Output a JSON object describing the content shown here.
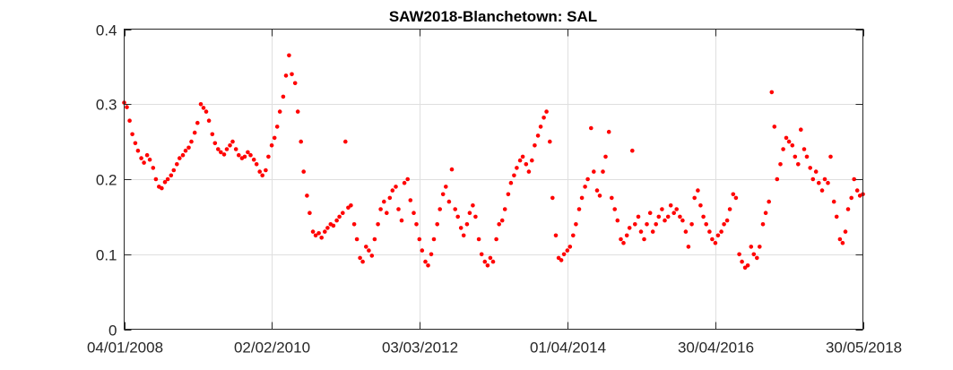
{
  "chart_data": {
    "type": "scatter",
    "title": "SAW2018-Blanchetown: SAL",
    "xlabel": "",
    "ylabel": "",
    "x_axis_type": "date",
    "xlim": [
      "2008-01-04",
      "2018-05-30"
    ],
    "ylim": [
      0,
      0.4
    ],
    "xticks": [
      {
        "date": "2008-01-04",
        "label": "04/01/2008"
      },
      {
        "date": "2010-02-02",
        "label": "02/02/2010"
      },
      {
        "date": "2012-03-03",
        "label": "03/03/2012"
      },
      {
        "date": "2014-04-01",
        "label": "01/04/2014"
      },
      {
        "date": "2016-04-30",
        "label": "30/04/2016"
      },
      {
        "date": "2018-05-30",
        "label": "30/05/2018"
      }
    ],
    "yticks": [
      {
        "value": 0,
        "label": "0"
      },
      {
        "value": 0.1,
        "label": "0.1"
      },
      {
        "value": 0.2,
        "label": "0.2"
      },
      {
        "value": 0.3,
        "label": "0.3"
      },
      {
        "value": 0.4,
        "label": "0.4"
      }
    ],
    "grid": true,
    "series": [
      {
        "name": "SAL",
        "color": "#ff0000",
        "marker": "dot",
        "points": [
          [
            "2008-01-04",
            0.302
          ],
          [
            "2008-01-18",
            0.296
          ],
          [
            "2008-02-01",
            0.278
          ],
          [
            "2008-02-15",
            0.26
          ],
          [
            "2008-03-01",
            0.248
          ],
          [
            "2008-03-15",
            0.238
          ],
          [
            "2008-04-01",
            0.228
          ],
          [
            "2008-04-15",
            0.222
          ],
          [
            "2008-05-01",
            0.232
          ],
          [
            "2008-05-15",
            0.226
          ],
          [
            "2008-06-01",
            0.215
          ],
          [
            "2008-06-15",
            0.2
          ],
          [
            "2008-07-01",
            0.19
          ],
          [
            "2008-07-15",
            0.188
          ],
          [
            "2008-08-01",
            0.196
          ],
          [
            "2008-08-15",
            0.2
          ],
          [
            "2008-09-01",
            0.205
          ],
          [
            "2008-09-15",
            0.212
          ],
          [
            "2008-10-01",
            0.22
          ],
          [
            "2008-10-15",
            0.228
          ],
          [
            "2008-11-01",
            0.232
          ],
          [
            "2008-11-15",
            0.238
          ],
          [
            "2008-12-01",
            0.242
          ],
          [
            "2008-12-15",
            0.25
          ],
          [
            "2009-01-01",
            0.262
          ],
          [
            "2009-01-15",
            0.275
          ],
          [
            "2009-02-01",
            0.3
          ],
          [
            "2009-02-15",
            0.295
          ],
          [
            "2009-03-01",
            0.29
          ],
          [
            "2009-03-15",
            0.278
          ],
          [
            "2009-04-01",
            0.26
          ],
          [
            "2009-04-15",
            0.248
          ],
          [
            "2009-05-01",
            0.24
          ],
          [
            "2009-05-15",
            0.236
          ],
          [
            "2009-06-01",
            0.233
          ],
          [
            "2009-06-15",
            0.24
          ],
          [
            "2009-07-01",
            0.245
          ],
          [
            "2009-07-15",
            0.25
          ],
          [
            "2009-08-01",
            0.24
          ],
          [
            "2009-08-15",
            0.232
          ],
          [
            "2009-09-01",
            0.228
          ],
          [
            "2009-09-15",
            0.23
          ],
          [
            "2009-10-01",
            0.236
          ],
          [
            "2009-10-15",
            0.232
          ],
          [
            "2009-11-01",
            0.226
          ],
          [
            "2009-11-15",
            0.22
          ],
          [
            "2009-12-01",
            0.21
          ],
          [
            "2009-12-15",
            0.205
          ],
          [
            "2010-01-01",
            0.212
          ],
          [
            "2010-01-15",
            0.23
          ],
          [
            "2010-02-01",
            0.245
          ],
          [
            "2010-02-15",
            0.255
          ],
          [
            "2010-03-01",
            0.27
          ],
          [
            "2010-03-15",
            0.29
          ],
          [
            "2010-04-01",
            0.31
          ],
          [
            "2010-04-15",
            0.338
          ],
          [
            "2010-05-01",
            0.365
          ],
          [
            "2010-05-15",
            0.34
          ],
          [
            "2010-06-01",
            0.328
          ],
          [
            "2010-06-15",
            0.29
          ],
          [
            "2010-07-01",
            0.25
          ],
          [
            "2010-07-15",
            0.21
          ],
          [
            "2010-08-01",
            0.178
          ],
          [
            "2010-08-15",
            0.155
          ],
          [
            "2010-09-01",
            0.13
          ],
          [
            "2010-09-15",
            0.125
          ],
          [
            "2010-10-01",
            0.128
          ],
          [
            "2010-10-15",
            0.122
          ],
          [
            "2010-11-01",
            0.13
          ],
          [
            "2010-11-15",
            0.135
          ],
          [
            "2010-12-01",
            0.14
          ],
          [
            "2010-12-15",
            0.138
          ],
          [
            "2011-01-01",
            0.145
          ],
          [
            "2011-01-15",
            0.15
          ],
          [
            "2011-02-01",
            0.155
          ],
          [
            "2011-02-15",
            0.25
          ],
          [
            "2011-03-01",
            0.162
          ],
          [
            "2011-03-15",
            0.165
          ],
          [
            "2011-04-01",
            0.14
          ],
          [
            "2011-04-15",
            0.12
          ],
          [
            "2011-05-01",
            0.095
          ],
          [
            "2011-05-15",
            0.09
          ],
          [
            "2011-06-01",
            0.11
          ],
          [
            "2011-06-15",
            0.105
          ],
          [
            "2011-07-01",
            0.098
          ],
          [
            "2011-07-15",
            0.12
          ],
          [
            "2011-08-01",
            0.14
          ],
          [
            "2011-08-15",
            0.16
          ],
          [
            "2011-09-01",
            0.17
          ],
          [
            "2011-09-15",
            0.155
          ],
          [
            "2011-10-01",
            0.175
          ],
          [
            "2011-10-15",
            0.185
          ],
          [
            "2011-11-01",
            0.19
          ],
          [
            "2011-11-15",
            0.16
          ],
          [
            "2011-12-01",
            0.145
          ],
          [
            "2011-12-15",
            0.195
          ],
          [
            "2012-01-01",
            0.2
          ],
          [
            "2012-01-15",
            0.172
          ],
          [
            "2012-02-01",
            0.155
          ],
          [
            "2012-02-15",
            0.14
          ],
          [
            "2012-03-01",
            0.12
          ],
          [
            "2012-03-15",
            0.105
          ],
          [
            "2012-04-01",
            0.09
          ],
          [
            "2012-04-15",
            0.085
          ],
          [
            "2012-05-01",
            0.1
          ],
          [
            "2012-05-15",
            0.12
          ],
          [
            "2012-06-01",
            0.14
          ],
          [
            "2012-06-15",
            0.16
          ],
          [
            "2012-07-01",
            0.18
          ],
          [
            "2012-07-15",
            0.19
          ],
          [
            "2012-08-01",
            0.17
          ],
          [
            "2012-08-15",
            0.213
          ],
          [
            "2012-09-01",
            0.16
          ],
          [
            "2012-09-15",
            0.15
          ],
          [
            "2012-10-01",
            0.135
          ],
          [
            "2012-10-15",
            0.125
          ],
          [
            "2012-11-01",
            0.14
          ],
          [
            "2012-11-15",
            0.155
          ],
          [
            "2012-12-01",
            0.165
          ],
          [
            "2012-12-15",
            0.15
          ],
          [
            "2013-01-01",
            0.12
          ],
          [
            "2013-01-15",
            0.1
          ],
          [
            "2013-02-01",
            0.09
          ],
          [
            "2013-02-15",
            0.085
          ],
          [
            "2013-03-01",
            0.095
          ],
          [
            "2013-03-15",
            0.09
          ],
          [
            "2013-04-01",
            0.12
          ],
          [
            "2013-04-15",
            0.14
          ],
          [
            "2013-05-01",
            0.145
          ],
          [
            "2013-05-15",
            0.16
          ],
          [
            "2013-06-01",
            0.18
          ],
          [
            "2013-06-15",
            0.195
          ],
          [
            "2013-07-01",
            0.205
          ],
          [
            "2013-07-15",
            0.215
          ],
          [
            "2013-08-01",
            0.225
          ],
          [
            "2013-08-15",
            0.23
          ],
          [
            "2013-09-01",
            0.22
          ],
          [
            "2013-09-15",
            0.21
          ],
          [
            "2013-10-01",
            0.225
          ],
          [
            "2013-10-15",
            0.245
          ],
          [
            "2013-11-01",
            0.258
          ],
          [
            "2013-11-15",
            0.27
          ],
          [
            "2013-12-01",
            0.282
          ],
          [
            "2013-12-15",
            0.29
          ],
          [
            "2014-01-01",
            0.25
          ],
          [
            "2014-01-15",
            0.175
          ],
          [
            "2014-02-01",
            0.125
          ],
          [
            "2014-02-15",
            0.095
          ],
          [
            "2014-03-01",
            0.092
          ],
          [
            "2014-03-15",
            0.1
          ],
          [
            "2014-04-01",
            0.105
          ],
          [
            "2014-04-15",
            0.11
          ],
          [
            "2014-05-01",
            0.125
          ],
          [
            "2014-05-15",
            0.14
          ],
          [
            "2014-06-01",
            0.16
          ],
          [
            "2014-06-15",
            0.175
          ],
          [
            "2014-07-01",
            0.19
          ],
          [
            "2014-07-15",
            0.2
          ],
          [
            "2014-08-01",
            0.268
          ],
          [
            "2014-08-15",
            0.21
          ],
          [
            "2014-09-01",
            0.185
          ],
          [
            "2014-09-15",
            0.178
          ],
          [
            "2014-10-01",
            0.21
          ],
          [
            "2014-10-15",
            0.23
          ],
          [
            "2014-11-01",
            0.263
          ],
          [
            "2014-11-15",
            0.175
          ],
          [
            "2014-12-01",
            0.16
          ],
          [
            "2014-12-15",
            0.145
          ],
          [
            "2015-01-01",
            0.12
          ],
          [
            "2015-01-15",
            0.115
          ],
          [
            "2015-02-01",
            0.125
          ],
          [
            "2015-02-15",
            0.135
          ],
          [
            "2015-03-01",
            0.238
          ],
          [
            "2015-03-15",
            0.14
          ],
          [
            "2015-04-01",
            0.15
          ],
          [
            "2015-04-15",
            0.13
          ],
          [
            "2015-05-01",
            0.12
          ],
          [
            "2015-05-15",
            0.14
          ],
          [
            "2015-06-01",
            0.155
          ],
          [
            "2015-06-15",
            0.13
          ],
          [
            "2015-07-01",
            0.14
          ],
          [
            "2015-07-15",
            0.15
          ],
          [
            "2015-08-01",
            0.16
          ],
          [
            "2015-08-15",
            0.145
          ],
          [
            "2015-09-01",
            0.15
          ],
          [
            "2015-09-15",
            0.165
          ],
          [
            "2015-10-01",
            0.155
          ],
          [
            "2015-10-15",
            0.16
          ],
          [
            "2015-11-01",
            0.15
          ],
          [
            "2015-11-15",
            0.145
          ],
          [
            "2015-12-01",
            0.13
          ],
          [
            "2015-12-15",
            0.11
          ],
          [
            "2016-01-01",
            0.14
          ],
          [
            "2016-01-15",
            0.175
          ],
          [
            "2016-02-01",
            0.185
          ],
          [
            "2016-02-15",
            0.165
          ],
          [
            "2016-03-01",
            0.15
          ],
          [
            "2016-03-15",
            0.14
          ],
          [
            "2016-04-01",
            0.13
          ],
          [
            "2016-04-15",
            0.12
          ],
          [
            "2016-05-01",
            0.115
          ],
          [
            "2016-05-15",
            0.125
          ],
          [
            "2016-06-01",
            0.13
          ],
          [
            "2016-06-15",
            0.14
          ],
          [
            "2016-07-01",
            0.145
          ],
          [
            "2016-07-15",
            0.16
          ],
          [
            "2016-08-01",
            0.18
          ],
          [
            "2016-08-15",
            0.175
          ],
          [
            "2016-09-01",
            0.1
          ],
          [
            "2016-09-15",
            0.09
          ],
          [
            "2016-10-01",
            0.082
          ],
          [
            "2016-10-15",
            0.085
          ],
          [
            "2016-11-01",
            0.11
          ],
          [
            "2016-11-15",
            0.1
          ],
          [
            "2016-12-01",
            0.095
          ],
          [
            "2016-12-15",
            0.11
          ],
          [
            "2017-01-01",
            0.14
          ],
          [
            "2017-01-15",
            0.155
          ],
          [
            "2017-02-01",
            0.17
          ],
          [
            "2017-02-15",
            0.316
          ],
          [
            "2017-03-01",
            0.27
          ],
          [
            "2017-03-15",
            0.2
          ],
          [
            "2017-04-01",
            0.22
          ],
          [
            "2017-04-15",
            0.24
          ],
          [
            "2017-05-01",
            0.255
          ],
          [
            "2017-05-15",
            0.25
          ],
          [
            "2017-06-01",
            0.245
          ],
          [
            "2017-06-15",
            0.23
          ],
          [
            "2017-07-01",
            0.22
          ],
          [
            "2017-07-15",
            0.266
          ],
          [
            "2017-08-01",
            0.24
          ],
          [
            "2017-08-15",
            0.23
          ],
          [
            "2017-09-01",
            0.215
          ],
          [
            "2017-09-15",
            0.2
          ],
          [
            "2017-10-01",
            0.21
          ],
          [
            "2017-10-15",
            0.195
          ],
          [
            "2017-11-01",
            0.185
          ],
          [
            "2017-11-15",
            0.2
          ],
          [
            "2017-12-01",
            0.195
          ],
          [
            "2017-12-15",
            0.23
          ],
          [
            "2018-01-01",
            0.17
          ],
          [
            "2018-01-15",
            0.15
          ],
          [
            "2018-02-01",
            0.12
          ],
          [
            "2018-02-15",
            0.115
          ],
          [
            "2018-03-01",
            0.13
          ],
          [
            "2018-03-15",
            0.16
          ],
          [
            "2018-04-01",
            0.175
          ],
          [
            "2018-04-15",
            0.2
          ],
          [
            "2018-05-01",
            0.185
          ],
          [
            "2018-05-15",
            0.178
          ],
          [
            "2018-05-30",
            0.18
          ]
        ]
      }
    ]
  }
}
